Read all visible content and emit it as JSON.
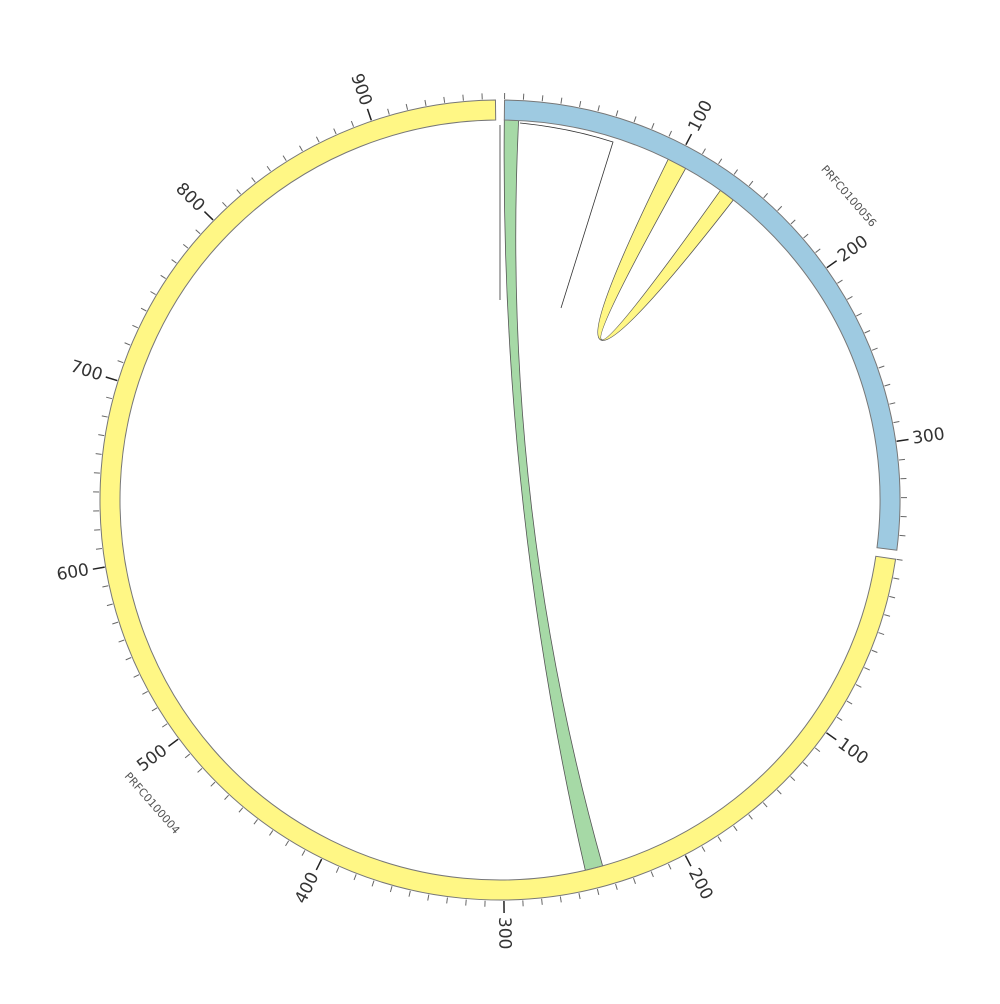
{
  "segments": [
    {
      "name": "PRFC0100056",
      "length": 358,
      "color": "#9ecae1",
      "ticks": [
        100,
        200,
        300
      ]
    },
    {
      "name": "PRFC0100004",
      "length": 967,
      "color": "#fff785",
      "ticks": [
        100,
        200,
        300,
        400,
        500,
        600,
        700,
        800,
        900
      ]
    }
  ],
  "minor_tick_step": 10,
  "links": [
    {
      "source": {
        "segment": 0,
        "start": 0,
        "end": 8
      },
      "target": {
        "segment": 1,
        "start": 244,
        "end": 254
      },
      "color": "#a6d9a6"
    },
    {
      "source": {
        "segment": 0,
        "start": 95,
        "end": 106
      },
      "target": {
        "segment": 0,
        "start": 129,
        "end": 138
      },
      "color": "#fff785"
    }
  ]
}
